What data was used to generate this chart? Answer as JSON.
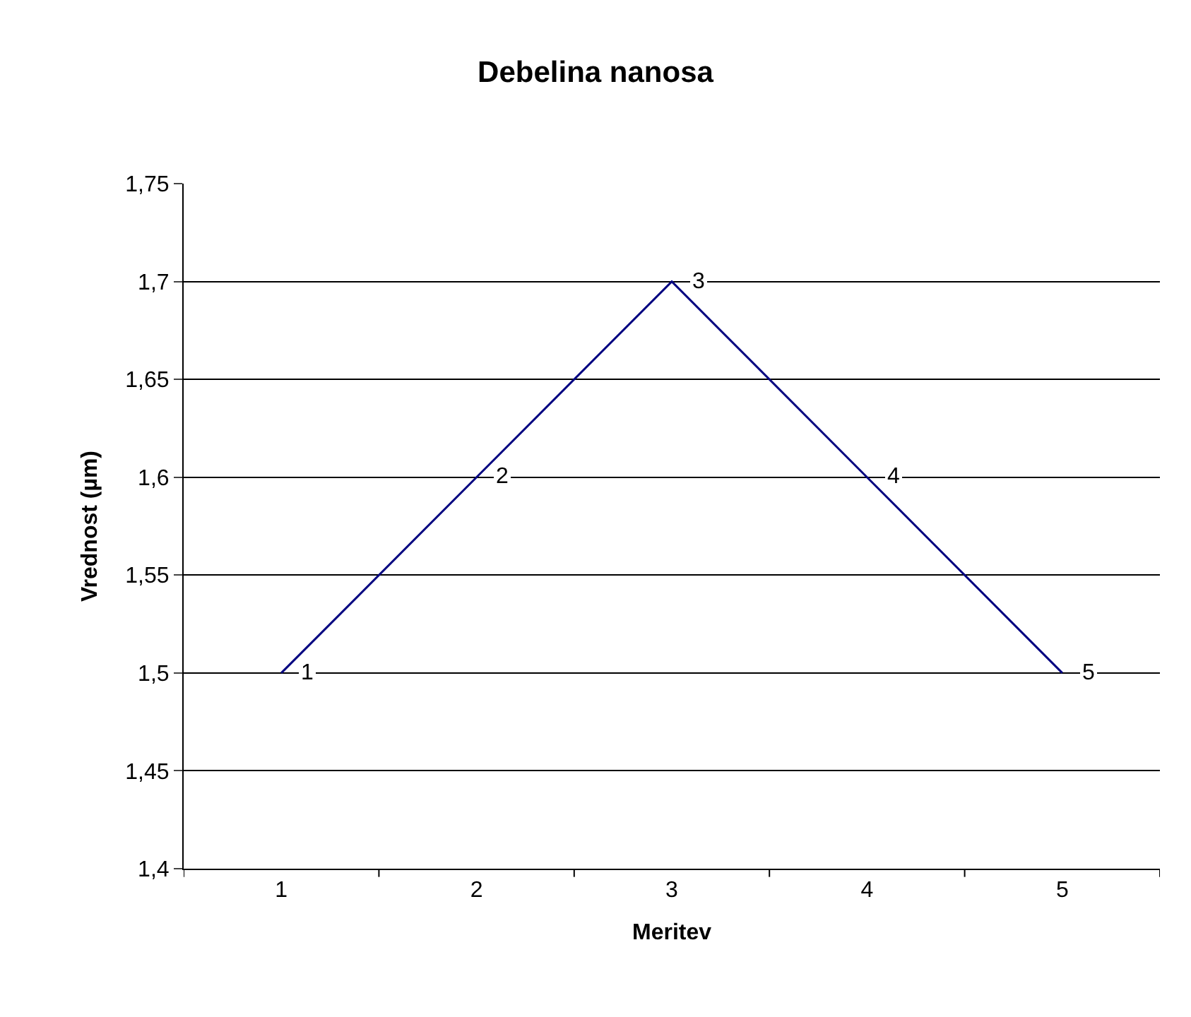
{
  "chart_data": {
    "type": "line",
    "title": "Debelina nanosa",
    "xlabel": "Meritev",
    "ylabel": "Vrednost (µm)",
    "categories": [
      "1",
      "2",
      "3",
      "4",
      "5"
    ],
    "series": [
      {
        "color": "#000080",
        "values": [
          1.5,
          1.6,
          1.7,
          1.6,
          1.5
        ]
      }
    ],
    "annotations": [
      {
        "text": "1",
        "x": "1",
        "y": 1.5
      },
      {
        "text": "2",
        "x": "2",
        "y": 1.6
      },
      {
        "text": "3",
        "x": "3",
        "y": 1.7
      },
      {
        "text": "4",
        "x": "4",
        "y": 1.6
      },
      {
        "text": "5",
        "x": "5",
        "y": 1.5
      }
    ],
    "ylim": [
      1.4,
      1.75
    ],
    "yticks": [
      {
        "value": 1.4,
        "label": "1,4"
      },
      {
        "value": 1.45,
        "label": "1,45"
      },
      {
        "value": 1.5,
        "label": "1,5"
      },
      {
        "value": 1.55,
        "label": "1,55"
      },
      {
        "value": 1.6,
        "label": "1,6"
      },
      {
        "value": 1.65,
        "label": "1,65"
      },
      {
        "value": 1.7,
        "label": "1,7"
      },
      {
        "value": 1.75,
        "label": "1,75"
      }
    ],
    "grid": "y",
    "legend": false,
    "marker": "none",
    "line_style": "solid"
  }
}
